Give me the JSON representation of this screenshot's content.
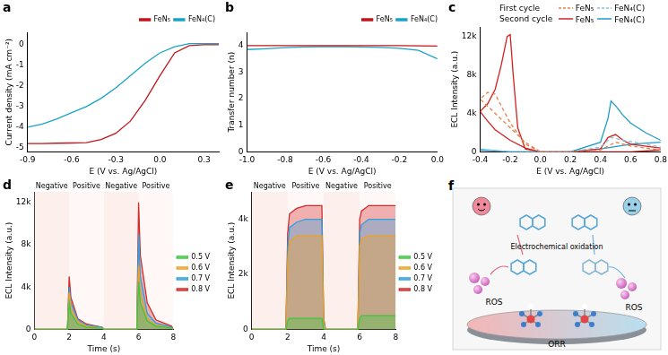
{
  "chart_data": [
    {
      "type": "line",
      "title": "a",
      "x_label": "E (V vs. Ag/AgCl)",
      "y_label": "Current density (mA cm⁻²)",
      "x": [
        -0.9,
        -0.8,
        -0.7,
        -0.6,
        -0.5,
        -0.4,
        -0.3,
        -0.2,
        -0.1,
        0.0,
        0.1,
        0.2,
        0.3,
        0.4
      ],
      "series": [
        {
          "name": "FeN₅",
          "color": "#c0161c",
          "values": [
            -4.8,
            -4.8,
            -4.78,
            -4.77,
            -4.75,
            -4.6,
            -4.3,
            -3.7,
            -2.7,
            -1.5,
            -0.4,
            -0.05,
            0.0,
            0.0
          ]
        },
        {
          "name": "FeN₄(C)",
          "color": "#1aa3c8",
          "values": [
            -4.0,
            -3.85,
            -3.6,
            -3.3,
            -3.0,
            -2.6,
            -2.1,
            -1.5,
            -0.9,
            -0.4,
            -0.1,
            0.05,
            0.05,
            0.05
          ]
        }
      ],
      "xlim": [
        -0.9,
        0.4
      ],
      "xticks": [
        -0.9,
        -0.6,
        -0.3,
        {
          "value": 0,
          "label": "0.0"
        },
        0.3
      ],
      "ylim": [
        -5.2,
        0.6
      ],
      "yticks": [
        -5,
        -4,
        -3,
        -2,
        -1,
        0
      ],
      "grid": false,
      "legend": "top"
    },
    {
      "type": "line",
      "title": "b",
      "x_label": "E (V vs. Ag/AgCl)",
      "y_label": "Transfer number (n)",
      "x": [
        -1.0,
        -0.9,
        -0.8,
        -0.7,
        -0.6,
        -0.5,
        -0.4,
        -0.3,
        -0.2,
        -0.1,
        0.0
      ],
      "series": [
        {
          "name": "FeN₅",
          "color": "#c0161c",
          "values": [
            4.0,
            4.0,
            4.0,
            4.0,
            4.0,
            4.0,
            4.0,
            4.0,
            4.0,
            3.99,
            3.98
          ]
        },
        {
          "name": "FeN₄(C)",
          "color": "#1aa3c8",
          "values": [
            3.85,
            3.88,
            3.92,
            3.95,
            3.96,
            3.96,
            3.95,
            3.93,
            3.9,
            3.82,
            3.5
          ]
        }
      ],
      "xlim": [
        -1.0,
        0.0
      ],
      "xticks": [
        {
          "value": -1,
          "label": "-1.0"
        },
        -0.8,
        -0.6,
        -0.4,
        -0.2,
        {
          "value": 0,
          "label": "0.0"
        }
      ],
      "ylim": [
        0,
        4.5
      ],
      "yticks": [
        0,
        1,
        2,
        3,
        4
      ],
      "grid": false,
      "legend": "top"
    },
    {
      "type": "line",
      "title": "c",
      "x_label": "E (V vs. Ag/AgCl)",
      "y_label": "ECL Intensity (a.u.)",
      "series_groups": [
        "First cycle",
        "Second cycle"
      ],
      "series": [
        {
          "name": "FeN₅",
          "group": "First cycle",
          "color": "#e8804a",
          "line_style": "dashed",
          "x": [
            0.0,
            -0.1,
            -0.2,
            -0.3,
            -0.35,
            -0.4,
            -0.3,
            -0.2,
            -0.1,
            0.0,
            0.2,
            0.4,
            0.5,
            0.6,
            0.8
          ],
          "values": [
            0,
            800,
            3000,
            6000,
            6200,
            5500,
            4000,
            2500,
            1000,
            0,
            0,
            200,
            1000,
            600,
            200
          ]
        },
        {
          "name": "FeN₄(C)",
          "group": "First cycle",
          "color": "#7fc6e0",
          "line_style": "dashed",
          "x": [
            0.0,
            -0.2,
            -0.4,
            -0.2,
            0.0,
            0.2,
            0.4,
            0.47,
            0.55,
            0.7,
            0.8
          ],
          "values": [
            0,
            0,
            300,
            0,
            0,
            0,
            500,
            1500,
            1200,
            800,
            500
          ]
        },
        {
          "name": "FeN₅",
          "group": "Second cycle",
          "color": "#d62020",
          "line_style": "solid",
          "x": [
            0.8,
            0.6,
            0.4,
            0.2,
            0.0,
            -0.1,
            -0.15,
            -0.18,
            -0.2,
            -0.22,
            -0.26,
            -0.3,
            -0.35,
            -0.4,
            -0.35,
            -0.3,
            -0.2,
            -0.1,
            0.0,
            0.2,
            0.4,
            0.45,
            0.5,
            0.55,
            0.6,
            0.8
          ],
          "values": [
            200,
            0,
            0,
            0,
            0,
            300,
            2500,
            8000,
            12200,
            12000,
            9000,
            6500,
            5000,
            4200,
            3200,
            2300,
            1200,
            400,
            0,
            0,
            300,
            1500,
            1800,
            1200,
            800,
            400
          ]
        },
        {
          "name": "FeN₄(C)",
          "group": "Second cycle",
          "color": "#1f9bc4",
          "line_style": "solid",
          "x": [
            0.8,
            0.6,
            0.4,
            0.2,
            0.0,
            -0.2,
            -0.4,
            -0.2,
            0.0,
            0.2,
            0.4,
            0.45,
            0.47,
            0.5,
            0.55,
            0.6,
            0.7,
            0.8
          ],
          "values": [
            1000,
            800,
            300,
            0,
            0,
            0,
            200,
            0,
            0,
            0,
            1000,
            3500,
            5300,
            4800,
            3800,
            3000,
            2000,
            1200
          ]
        }
      ],
      "xlim": [
        -0.4,
        0.8
      ],
      "xticks": [
        -0.4,
        -0.2,
        {
          "value": 0,
          "label": "0.0"
        },
        0.2,
        0.4,
        0.6,
        0.8
      ],
      "ylim": [
        0,
        13000
      ],
      "yticks": [
        0,
        {
          "value": 4000,
          "label": "4k"
        },
        {
          "value": 8000,
          "label": "8k"
        },
        {
          "value": 12000,
          "label": "12k"
        }
      ],
      "grid": false,
      "legend": "top"
    },
    {
      "type": "line",
      "title": "d",
      "x_label": "Time (s)",
      "y_label": "ECL Intensity (a.u.)",
      "pulses": [
        {
          "label": "Negative",
          "start": 0,
          "end": 2
        },
        {
          "label": "Positive",
          "start": 2,
          "end": 4
        },
        {
          "label": "Negative",
          "start": 4,
          "end": 6
        },
        {
          "label": "Positive",
          "start": 6,
          "end": 8
        }
      ],
      "x": [
        0,
        1,
        1.9,
        2,
        2.1,
        2.5,
        3,
        3.9,
        4,
        4.1,
        4.5,
        5,
        5.9,
        6,
        6.1,
        6.5,
        7,
        7.9,
        8
      ],
      "series": [
        {
          "name": "0.5 V",
          "color": "#3cc83c",
          "values": [
            0,
            0,
            0,
            2500,
            1500,
            500,
            200,
            100,
            0,
            0,
            0,
            0,
            0,
            4500,
            2500,
            800,
            300,
            100,
            0
          ]
        },
        {
          "name": "0.6 V",
          "color": "#f0a020",
          "values": [
            0,
            0,
            0,
            3500,
            2000,
            700,
            300,
            100,
            0,
            0,
            0,
            0,
            0,
            6000,
            3500,
            1000,
            400,
            100,
            0
          ]
        },
        {
          "name": "0.7 V",
          "color": "#2ea0e0",
          "values": [
            0,
            0,
            0,
            4000,
            2500,
            900,
            400,
            200,
            0,
            0,
            0,
            0,
            0,
            9000,
            5000,
            1500,
            600,
            200,
            0
          ]
        },
        {
          "name": "0.8 V",
          "color": "#d42a2a",
          "values": [
            0,
            0,
            0,
            5000,
            3000,
            1000,
            500,
            200,
            0,
            0,
            0,
            0,
            0,
            12000,
            7000,
            2500,
            900,
            300,
            0
          ]
        }
      ],
      "xlim": [
        0,
        8
      ],
      "xticks": [
        0,
        2,
        4,
        6,
        8
      ],
      "ylim": [
        0,
        13000
      ],
      "yticks": [
        0,
        {
          "value": 4000,
          "label": "4k"
        },
        {
          "value": 8000,
          "label": "8k"
        },
        {
          "value": 12000,
          "label": "12k"
        }
      ],
      "grid": false,
      "legend": "right"
    },
    {
      "type": "line",
      "title": "e",
      "x_label": "Time (s)",
      "y_label": "ECL Intensity (a.u.)",
      "pulses": [
        {
          "label": "Negative",
          "start": 0,
          "end": 2
        },
        {
          "label": "Positive",
          "start": 2,
          "end": 4
        },
        {
          "label": "Negative",
          "start": 4,
          "end": 6
        },
        {
          "label": "Positive",
          "start": 6,
          "end": 8
        }
      ],
      "x": [
        0,
        1,
        1.9,
        2,
        2.1,
        2.5,
        3,
        3.9,
        4,
        4.1,
        4.5,
        5,
        5.9,
        6,
        6.1,
        6.5,
        7,
        7.9,
        8
      ],
      "series": [
        {
          "name": "0.5 V",
          "color": "#3cc83c",
          "values": [
            0,
            0,
            0,
            300,
            400,
            400,
            400,
            400,
            0,
            0,
            0,
            0,
            0,
            400,
            500,
            500,
            500,
            500,
            500
          ]
        },
        {
          "name": "0.6 V",
          "color": "#f0a020",
          "values": [
            0,
            0,
            0,
            2500,
            3200,
            3400,
            3400,
            3400,
            200,
            0,
            0,
            0,
            0,
            3000,
            3300,
            3400,
            3400,
            3400,
            3400
          ]
        },
        {
          "name": "0.7 V",
          "color": "#2ea0e0",
          "values": [
            0,
            0,
            0,
            3000,
            3700,
            3900,
            4000,
            4000,
            300,
            0,
            0,
            0,
            0,
            3500,
            3800,
            4000,
            4000,
            4000,
            4000
          ]
        },
        {
          "name": "0.8 V",
          "color": "#d42a2a",
          "values": [
            0,
            0,
            0,
            3500,
            4200,
            4400,
            4500,
            4500,
            400,
            0,
            0,
            0,
            0,
            4000,
            4300,
            4500,
            4500,
            4500,
            4500
          ]
        }
      ],
      "xlim": [
        0,
        8
      ],
      "xticks": [
        0,
        2,
        4,
        6,
        8
      ],
      "ylim": [
        0,
        5000
      ],
      "yticks": [
        0,
        {
          "value": 2000,
          "label": "2k"
        },
        {
          "value": 4000,
          "label": "4k"
        }
      ],
      "grid": false,
      "legend": "right"
    }
  ],
  "diagram": {
    "title": "f",
    "process": "Electrochemical oxidation",
    "left_species": "ROS",
    "right_species": "ROS",
    "electrode": "ORR"
  }
}
